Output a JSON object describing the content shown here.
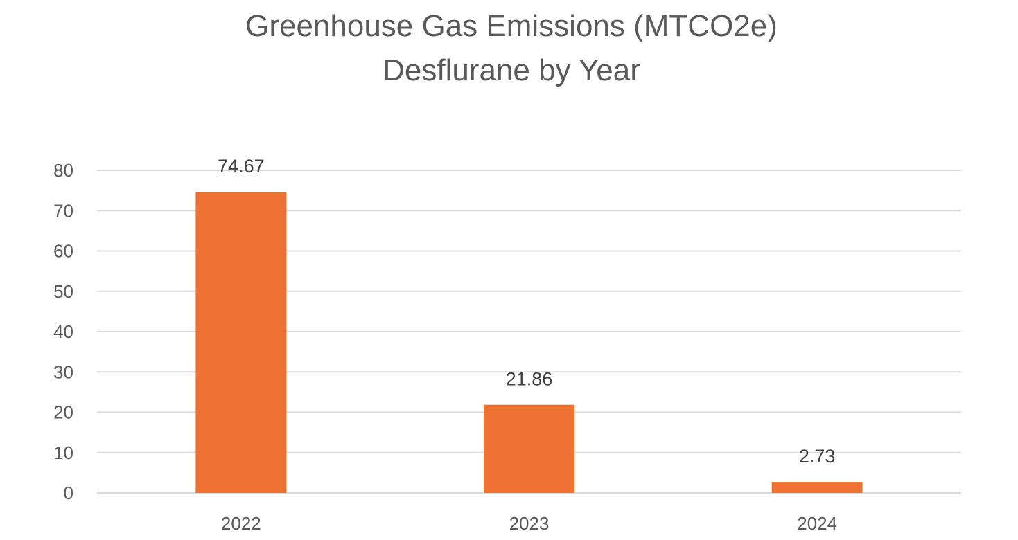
{
  "chart_data": {
    "type": "bar",
    "title": "Greenhouse Gas Emissions (MTCO2e)",
    "subtitle": "Desflurane by Year",
    "xlabel": "",
    "ylabel": "",
    "categories": [
      "2022",
      "2023",
      "2024"
    ],
    "values": [
      74.67,
      21.86,
      2.73
    ],
    "data_labels": [
      "74.67",
      "21.86",
      "2.73"
    ],
    "ylim": [
      0,
      80
    ],
    "yticks": [
      0,
      10,
      20,
      30,
      40,
      50,
      60,
      70,
      80
    ],
    "grid": true,
    "legend": "none",
    "bar_color": "#ED7231"
  }
}
